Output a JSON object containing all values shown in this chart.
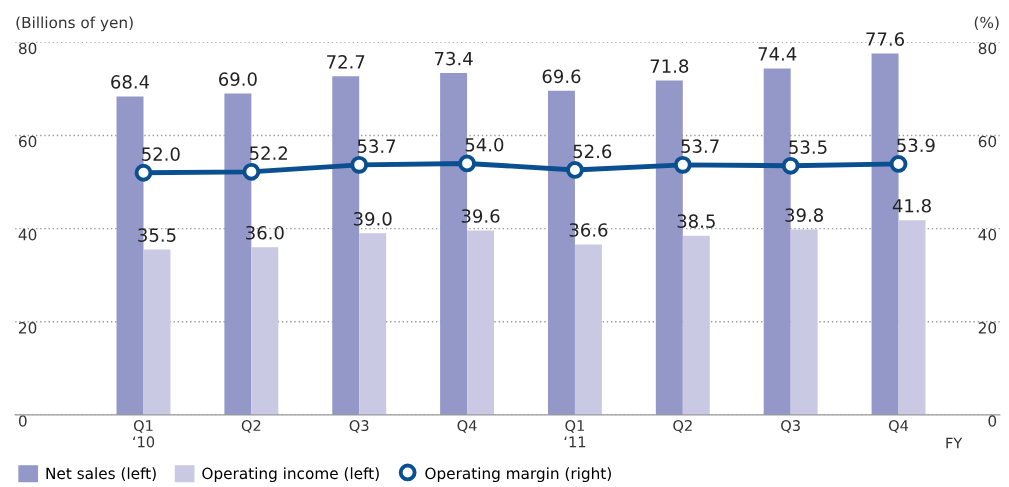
{
  "chart_data": {
    "type": "bar",
    "categories": [
      "Q1\n‘10",
      "Q2",
      "Q3",
      "Q4",
      "Q1\n‘11",
      "Q2",
      "Q3",
      "Q4"
    ],
    "series": [
      {
        "name": "Net sales (left)",
        "color": "#9498c9",
        "values": [
          68.4,
          69.0,
          72.7,
          73.4,
          69.6,
          71.8,
          74.4,
          77.6
        ],
        "value_labels": [
          "68.4",
          "69.0",
          "72.7",
          "73.4",
          "69.6",
          "71.8",
          "74.4",
          "77.6"
        ]
      },
      {
        "name": "Operating income (left)",
        "color": "#c9c9e4",
        "values": [
          35.5,
          36.0,
          39.0,
          39.6,
          36.6,
          38.5,
          39.8,
          41.8
        ],
        "value_labels": [
          "35.5",
          "36.0",
          "39.0",
          "39.6",
          "36.6",
          "38.5",
          "39.8",
          "41.8"
        ]
      },
      {
        "name": "Operating margin (right)",
        "type": "line",
        "axis": "y2",
        "color": "#0a4f8f",
        "marker": "circle",
        "values": [
          52.0,
          52.2,
          53.7,
          54.0,
          52.6,
          53.7,
          53.5,
          53.9
        ],
        "value_labels": [
          "52.0",
          "52.2",
          "53.7",
          "54.0",
          "52.6",
          "53.7",
          "53.5",
          "53.9"
        ]
      }
    ],
    "xlabel": "FY",
    "ylabel": "(Billions of yen)",
    "y2label": "(%)",
    "ylim": [
      0,
      80
    ],
    "yticks": [
      0,
      20,
      40,
      60,
      80
    ],
    "y2lim": [
      0,
      80
    ],
    "y2ticks": [
      0,
      20,
      40,
      60,
      80
    ],
    "grid": "y",
    "legend": "bottom"
  }
}
